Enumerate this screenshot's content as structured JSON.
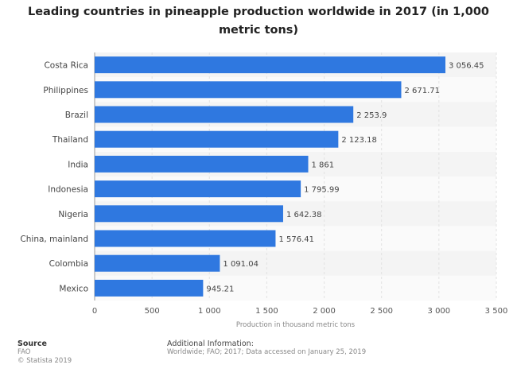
{
  "title_line1": "Leading countries in pineapple production worldwide in 2017 (in 1,000",
  "title_line2": "metric tons)",
  "chart_data": {
    "type": "bar",
    "orientation": "horizontal",
    "categories": [
      "Costa Rica",
      "Philippines",
      "Brazil",
      "Thailand",
      "India",
      "Indonesia",
      "Nigeria",
      "China, mainland",
      "Colombia",
      "Mexico"
    ],
    "values": [
      3056.45,
      2671.71,
      2253.9,
      2123.18,
      1861,
      1795.99,
      1642.38,
      1576.41,
      1091.04,
      945.21
    ],
    "value_labels": [
      "3 056.45",
      "2 671.71",
      "2 253.9",
      "2 123.18",
      "1 861",
      "1 795.99",
      "1 642.38",
      "1 576.41",
      "1 091.04",
      "945.21"
    ],
    "xlim": [
      0,
      3500
    ],
    "xticks": [
      0,
      500,
      1000,
      1500,
      2000,
      2500,
      3000,
      3500
    ],
    "xtick_labels": [
      "0",
      "500",
      "1 000",
      "1 500",
      "2 000",
      "2 500",
      "3 000",
      "3 500"
    ],
    "xlabel": "Production in thousand metric tons",
    "bar_color": "#2f78e0",
    "grid": true
  },
  "footer": {
    "source_heading": "Source",
    "source_lines": [
      "FAO",
      "© Statista 2019"
    ],
    "info_heading": "Additional Information:",
    "info_text": "Worldwide; FAO; 2017; Data accessed on January 25, 2019"
  }
}
